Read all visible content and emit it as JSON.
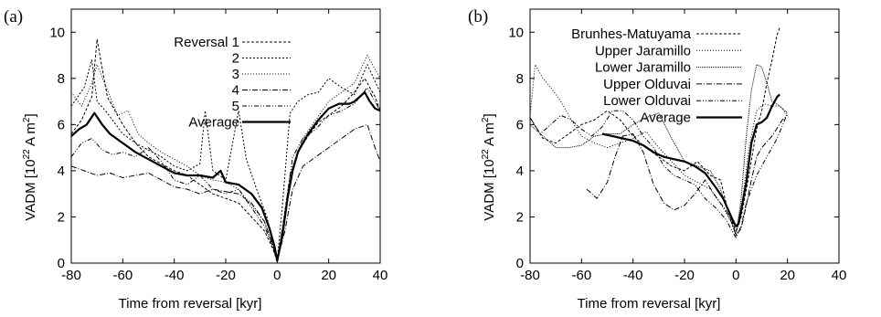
{
  "chart_data": [
    {
      "type": "line",
      "panel_label": "(a)",
      "xlabel": "Time from reversal [kyr]",
      "ylabel_main": "VADM [10",
      "ylabel_exp": "22",
      "ylabel_unit": " A m",
      "ylabel_exp2": "2",
      "ylabel_close": "]",
      "xlim": [
        -80,
        40
      ],
      "ylim": [
        0,
        11
      ],
      "xticks": [
        "-80",
        "-60",
        "-40",
        "-20",
        "0",
        "20",
        "40"
      ],
      "yticks": [
        "0",
        "2",
        "4",
        "6",
        "8",
        "10"
      ],
      "grid": false,
      "legend_position": "top-center",
      "series": [
        {
          "name": "Reversal 1",
          "dash": "3,2",
          "width": 1,
          "x": [
            -80,
            -76,
            -72,
            -70,
            -66,
            -60,
            -55,
            -50,
            -45,
            -40,
            -35,
            -30,
            -25,
            -20,
            -15,
            -10,
            -5,
            -2,
            0,
            2,
            5,
            8,
            12,
            16,
            20,
            25,
            30,
            34,
            38,
            40
          ],
          "y": [
            5.6,
            6.2,
            7.2,
            9.7,
            7.2,
            6.0,
            5.2,
            4.6,
            4.3,
            4.0,
            3.8,
            3.4,
            3.0,
            2.8,
            2.6,
            2.0,
            1.4,
            0.7,
            0.1,
            1.5,
            3.8,
            4.8,
            5.5,
            6.1,
            6.4,
            6.8,
            7.4,
            8.0,
            7.2,
            6.6
          ]
        },
        {
          "name": "2",
          "dash": "2,2",
          "width": 1,
          "x": [
            -80,
            -75,
            -72,
            -70,
            -66,
            -60,
            -55,
            -50,
            -45,
            -40,
            -35,
            -30,
            -28,
            -25,
            -20,
            -15,
            -12,
            -8,
            -4,
            0,
            2,
            5,
            8,
            12,
            16,
            20,
            25,
            30,
            35,
            40
          ],
          "y": [
            6.8,
            7.6,
            8.8,
            7.0,
            6.5,
            5.6,
            5.2,
            4.9,
            4.6,
            4.2,
            4.0,
            4.3,
            6.6,
            4.0,
            3.6,
            6.6,
            4.5,
            3.2,
            2.0,
            0.1,
            2.5,
            6.5,
            7.0,
            7.3,
            7.4,
            8.0,
            7.6,
            7.3,
            8.6,
            7.4
          ]
        },
        {
          "name": "3",
          "dash": "1,2",
          "width": 1,
          "x": [
            -80,
            -76,
            -72,
            -70,
            -66,
            -62,
            -58,
            -54,
            -50,
            -45,
            -40,
            -35,
            -30,
            -25,
            -20,
            -15,
            -10,
            -5,
            -2,
            0,
            3,
            6,
            10,
            15,
            20,
            25,
            30,
            35,
            40
          ],
          "y": [
            7.4,
            6.8,
            7.8,
            8.6,
            7.5,
            6.4,
            6.6,
            5.6,
            5.2,
            4.8,
            4.5,
            4.2,
            3.8,
            3.6,
            3.5,
            3.2,
            2.5,
            1.8,
            0.8,
            0.1,
            2.0,
            4.2,
            5.4,
            6.2,
            7.0,
            7.4,
            7.8,
            9.0,
            8.0
          ]
        },
        {
          "name": "4",
          "dash": "6,2,1,2",
          "width": 1,
          "x": [
            -80,
            -75,
            -70,
            -65,
            -60,
            -55,
            -50,
            -45,
            -40,
            -35,
            -30,
            -25,
            -20,
            -15,
            -10,
            -5,
            -2,
            0,
            3,
            6,
            10,
            15,
            20,
            25,
            30,
            35,
            38,
            40
          ],
          "y": [
            4.2,
            4.0,
            3.8,
            3.9,
            3.7,
            3.8,
            3.9,
            3.6,
            3.3,
            3.2,
            3.0,
            3.2,
            3.1,
            3.0,
            2.6,
            1.8,
            0.9,
            0.1,
            1.4,
            3.2,
            4.2,
            4.6,
            5.0,
            5.4,
            5.8,
            6.0,
            5.0,
            4.4
          ]
        },
        {
          "name": "5",
          "dash": "5,2,1,2,1,2",
          "width": 1,
          "x": [
            -80,
            -76,
            -72,
            -68,
            -64,
            -60,
            -55,
            -50,
            -45,
            -40,
            -35,
            -30,
            -25,
            -20,
            -15,
            -10,
            -5,
            -2,
            0,
            3,
            6,
            10,
            15,
            20,
            25,
            30,
            35,
            40
          ],
          "y": [
            4.6,
            5.2,
            5.4,
            4.9,
            4.7,
            4.8,
            4.6,
            5.0,
            4.4,
            3.6,
            3.4,
            3.8,
            3.2,
            3.0,
            3.2,
            2.4,
            1.6,
            0.8,
            0.1,
            2.2,
            4.6,
            5.4,
            5.8,
            6.4,
            6.6,
            6.9,
            7.6,
            6.6
          ]
        },
        {
          "name": "Average",
          "dash": "",
          "width": 2.2,
          "x": [
            -80,
            -77,
            -74,
            -71,
            -68,
            -65,
            -60,
            -55,
            -50,
            -45,
            -40,
            -35,
            -30,
            -25,
            -22,
            -20,
            -15,
            -10,
            -6,
            -3,
            -1,
            0,
            2,
            4,
            6,
            8,
            12,
            16,
            20,
            24,
            28,
            30,
            34,
            36,
            38,
            40
          ],
          "y": [
            5.5,
            5.8,
            6.0,
            6.5,
            6.0,
            5.6,
            5.2,
            4.8,
            4.5,
            4.2,
            3.9,
            3.8,
            3.8,
            3.7,
            4.0,
            3.5,
            3.4,
            3.0,
            2.4,
            1.5,
            0.7,
            0.1,
            1.2,
            2.8,
            4.0,
            4.8,
            5.6,
            6.2,
            6.7,
            6.9,
            6.9,
            7.0,
            7.4,
            7.0,
            6.7,
            6.6
          ]
        }
      ]
    },
    {
      "type": "line",
      "panel_label": "(b)",
      "xlabel": "Time from reversal [kyr]",
      "ylabel_main": "VADM [10",
      "ylabel_exp": "22",
      "ylabel_unit": " A m",
      "ylabel_exp2": "2",
      "ylabel_close": "]",
      "xlim": [
        -80,
        40
      ],
      "ylim": [
        0,
        11
      ],
      "xticks": [
        "-80",
        "-60",
        "-40",
        "-20",
        "0",
        "20",
        "40"
      ],
      "yticks": [
        "0",
        "2",
        "4",
        "6",
        "8",
        "10"
      ],
      "grid": false,
      "legend_position": "top-left",
      "series": [
        {
          "name": "Brunhes-Matuyama",
          "dash": "3,2",
          "width": 1,
          "x": [
            -80,
            -75,
            -70,
            -65,
            -60,
            -55,
            -50,
            -45,
            -40,
            -35,
            -30,
            -25,
            -20,
            -15,
            -10,
            -6,
            -3,
            0,
            2,
            5,
            8,
            10,
            12,
            14,
            16,
            17
          ],
          "y": [
            6.3,
            5.4,
            5.2,
            5.6,
            6.0,
            6.2,
            6.6,
            6.2,
            5.5,
            5.0,
            4.6,
            4.2,
            4.0,
            4.4,
            3.8,
            3.6,
            2.2,
            1.4,
            2.0,
            3.8,
            5.8,
            6.6,
            7.8,
            8.8,
            9.9,
            10.2
          ]
        },
        {
          "name": "Upper Jaramillo",
          "dash": "1,2",
          "width": 1,
          "x": [
            -80,
            -78,
            -75,
            -72,
            -68,
            -64,
            -60,
            -55,
            -50,
            -45,
            -40,
            -35,
            -30,
            -25,
            -20,
            -15,
            -10,
            -5,
            -2,
            0,
            2,
            5,
            8,
            11,
            14,
            17,
            20
          ],
          "y": [
            6.4,
            8.6,
            8.0,
            7.6,
            7.0,
            6.2,
            5.5,
            5.2,
            5.0,
            5.2,
            5.4,
            5.7,
            5.0,
            4.4,
            3.8,
            3.5,
            3.2,
            2.4,
            1.8,
            1.2,
            2.2,
            5.0,
            6.6,
            6.9,
            6.8,
            6.8,
            6.4
          ]
        },
        {
          "name": "Lower Jaramillo",
          "dash": "1,1",
          "width": 1,
          "x": [
            -80,
            -75,
            -70,
            -65,
            -60,
            -55,
            -50,
            -45,
            -40,
            -35,
            -30,
            -25,
            -20,
            -15,
            -10,
            -6,
            -3,
            0,
            2,
            4,
            6,
            8,
            10,
            12,
            14,
            17,
            20
          ],
          "y": [
            6.0,
            5.5,
            5.0,
            5.0,
            5.1,
            5.5,
            5.6,
            5.6,
            6.0,
            6.3,
            6.5,
            5.4,
            4.4,
            4.2,
            4.0,
            3.2,
            2.2,
            1.2,
            2.8,
            5.5,
            7.5,
            8.6,
            8.5,
            7.8,
            7.0,
            6.8,
            6.5
          ]
        },
        {
          "name": "Upper Olduvai",
          "dash": "6,2,1,2",
          "width": 1,
          "x": [
            -58,
            -54,
            -50,
            -47,
            -44,
            -40,
            -36,
            -32,
            -28,
            -24,
            -20,
            -16,
            -12,
            -8,
            -4,
            -1,
            0,
            2,
            4,
            6,
            8,
            10,
            14,
            18,
            20
          ],
          "y": [
            3.2,
            2.8,
            3.5,
            4.6,
            5.5,
            5.6,
            4.8,
            3.4,
            2.6,
            2.3,
            2.5,
            3.0,
            3.6,
            2.9,
            2.3,
            1.6,
            1.2,
            1.5,
            2.5,
            3.6,
            4.6,
            5.0,
            5.5,
            6.2,
            6.4
          ]
        },
        {
          "name": "Lower Olduvai",
          "dash": "5,2,1,2,1,2",
          "width": 1,
          "x": [
            -80,
            -76,
            -72,
            -68,
            -64,
            -60,
            -56,
            -52,
            -48,
            -44,
            -40,
            -36,
            -32,
            -28,
            -24,
            -20,
            -16,
            -12,
            -8,
            -4,
            -1,
            0,
            2,
            4,
            8,
            12,
            16,
            20
          ],
          "y": [
            6.3,
            5.6,
            6.0,
            6.4,
            6.2,
            5.8,
            5.5,
            5.9,
            6.6,
            6.6,
            6.2,
            5.5,
            5.0,
            4.2,
            3.8,
            3.6,
            3.4,
            2.8,
            2.4,
            1.9,
            1.3,
            1.1,
            1.6,
            2.6,
            3.8,
            4.6,
            5.4,
            6.5
          ]
        },
        {
          "name": "Average",
          "dash": "",
          "width": 2.2,
          "x": [
            -52,
            -48,
            -44,
            -40,
            -36,
            -32,
            -28,
            -24,
            -20,
            -16,
            -12,
            -8,
            -5,
            -3,
            -1,
            0,
            1,
            2,
            4,
            6,
            8,
            10,
            12,
            14,
            16,
            17
          ],
          "y": [
            5.6,
            5.5,
            5.4,
            5.3,
            5.1,
            4.8,
            4.6,
            4.5,
            4.4,
            4.2,
            3.9,
            3.3,
            2.8,
            2.3,
            1.8,
            1.6,
            1.7,
            2.3,
            3.5,
            5.2,
            6.0,
            6.1,
            6.3,
            6.8,
            7.2,
            7.3
          ]
        }
      ]
    }
  ]
}
